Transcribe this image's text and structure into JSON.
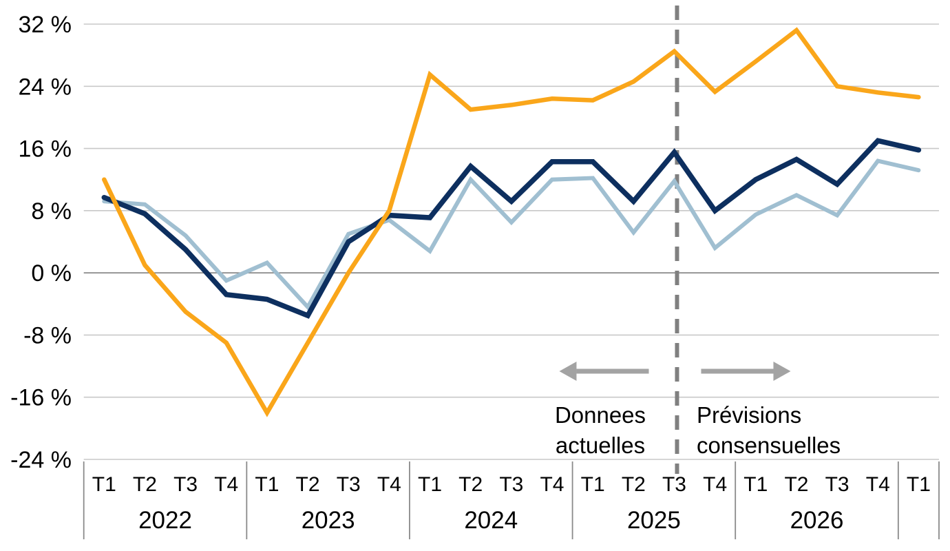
{
  "chart_data": {
    "type": "line",
    "title": "",
    "legend": "none",
    "y_axis": {
      "max": 32,
      "min": -24,
      "step": 8,
      "unit": "%",
      "ticks": [
        {
          "value": 32,
          "label": "32 %"
        },
        {
          "value": 24,
          "label": "24 %"
        },
        {
          "value": 16,
          "label": "16 %"
        },
        {
          "value": 8,
          "label": "8 %"
        },
        {
          "value": 0,
          "label": "0 %"
        },
        {
          "value": -8,
          "label": "-8 %"
        },
        {
          "value": -16,
          "label": "-16 %"
        },
        {
          "value": -24,
          "label": "-24 %"
        }
      ]
    },
    "x_axis": {
      "quarter_labels": [
        "T1",
        "T2",
        "T3",
        "T4",
        "T1",
        "T2",
        "T3",
        "T4",
        "T1",
        "T2",
        "T3",
        "T4",
        "T1",
        "T2",
        "T3",
        "T4",
        "T1",
        "T2",
        "T3",
        "T4",
        "T1"
      ],
      "year_groups": [
        {
          "label": "2022",
          "span": 4
        },
        {
          "label": "2023",
          "span": 4
        },
        {
          "label": "2024",
          "span": 4
        },
        {
          "label": "2025",
          "span": 4
        },
        {
          "label": "2026",
          "span": 4
        },
        {
          "label": "",
          "span": 1
        }
      ]
    },
    "series": [
      {
        "id": "light-blue-line",
        "color_key": "light_blue",
        "stroke_width": 6,
        "values": [
          9.2,
          8.8,
          4.8,
          -1,
          1.3,
          -4.4,
          5,
          6.8,
          2.8,
          12,
          6.5,
          12,
          12.2,
          5.2,
          11.8,
          3.2,
          7.5,
          10,
          7.4,
          14.4,
          13.2
        ]
      },
      {
        "id": "navy-line",
        "color_key": "navy",
        "stroke_width": 7.5,
        "values": [
          9.7,
          7.6,
          3,
          -2.8,
          -3.4,
          -5.5,
          4,
          7.4,
          7.1,
          13.7,
          9.2,
          14.3,
          14.3,
          9.2,
          15.5,
          8,
          12,
          14.6,
          11.4,
          17,
          15.8
        ]
      },
      {
        "id": "orange-line",
        "color_key": "orange",
        "stroke_width": 6.5,
        "values": [
          12,
          1,
          -5,
          -9,
          -18,
          -9,
          0,
          8,
          25.5,
          21,
          21.6,
          22.4,
          22.2,
          24.6,
          28.5,
          23.3,
          27.2,
          31.2,
          24,
          23.2,
          22.6
        ]
      }
    ],
    "boundary_index": 14
  },
  "annotations": {
    "left_label": {
      "line1": "Donnees",
      "line2": "actuelles",
      "arrow_icon": "left-arrow"
    },
    "right_label": {
      "line1": "Prévisions",
      "line2": "consensuelles",
      "arrow_icon": "right-arrow"
    }
  },
  "colors": {
    "orange": "#FAA61A",
    "navy": "#0D2F5F",
    "light_blue": "#A0BFD1",
    "gridline": "#C8C8C8",
    "zero_line": "#7F7F7F",
    "axis_line": "#8A8A8A",
    "dashed_line": "#808080",
    "arrow": "#A3A3A3",
    "text": "#000000"
  }
}
